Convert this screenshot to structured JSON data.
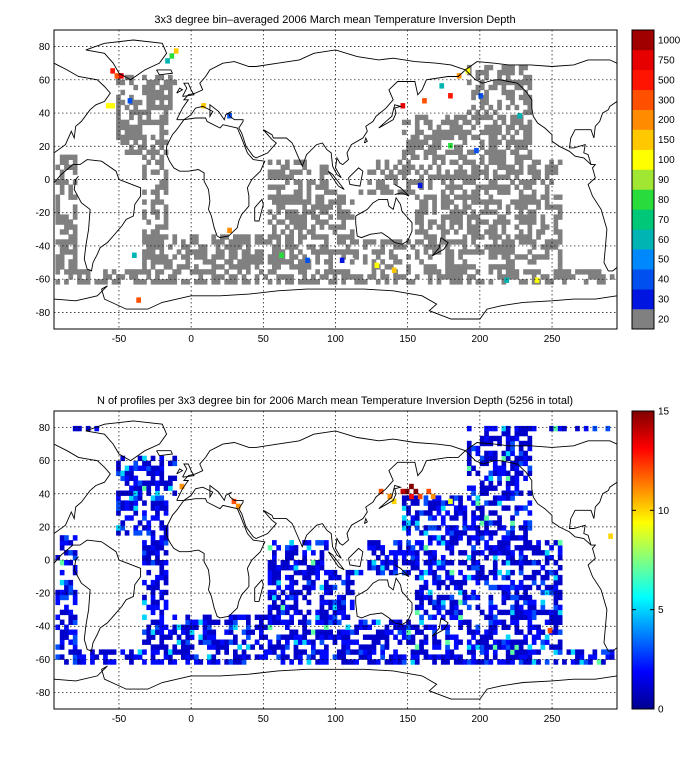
{
  "figure": {
    "panels": [
      {
        "title": "3x3 degree bin–averaged 2006 March mean Temperature Inversion Depth",
        "colorbar_labels": [
          "20",
          "30",
          "40",
          "50",
          "60",
          "70",
          "80",
          "90",
          "100",
          "150",
          "200",
          "300",
          "500",
          "750",
          "1000"
        ],
        "colorbar_colors": [
          "#808080",
          "#0016e0",
          "#0050f0",
          "#0088ff",
          "#00b4b4",
          "#00c878",
          "#28dc3c",
          "#a0e632",
          "#ffff00",
          "#ffc800",
          "#ff8c00",
          "#ff5000",
          "#ff1400",
          "#e60000",
          "#a00000"
        ]
      },
      {
        "title": "N of profiles per 3x3 degree bin for 2006 March mean Temperature Inversion Depth  (5256 in total)",
        "colorbar_ticks": [
          "0",
          "5",
          "10",
          "15"
        ],
        "colorbar_colors": [
          "#00008f",
          "#0000ff",
          "#0080ff",
          "#00ffff",
          "#80ff80",
          "#ffff00",
          "#ff8000",
          "#ff0000",
          "#800000"
        ]
      }
    ]
  },
  "chart_data": [
    {
      "type": "heatmap",
      "title": "3x3 degree bin–averaged 2006 March mean Temperature Inversion Depth",
      "xlabel": "",
      "ylabel": "",
      "xlim": [
        -95,
        295
      ],
      "ylim": [
        -90,
        90
      ],
      "xticks": [
        -50,
        0,
        50,
        100,
        150,
        200,
        250
      ],
      "yticks": [
        -80,
        -60,
        -40,
        -20,
        0,
        20,
        40,
        60,
        80
      ],
      "grid": true,
      "colorbar": {
        "type": "categorical",
        "labels": [
          "20",
          "30",
          "40",
          "50",
          "60",
          "70",
          "80",
          "90",
          "100",
          "150",
          "200",
          "300",
          "500",
          "750",
          "1000"
        ]
      },
      "notable_bins": [
        {
          "lon": -56,
          "lat": 64,
          "value": 500
        },
        {
          "lon": -53,
          "lat": 61,
          "value": 300
        },
        {
          "lon": -50,
          "lat": 61,
          "value": 750
        },
        {
          "lon": -59,
          "lat": 43,
          "value": 100
        },
        {
          "lon": -56,
          "lat": 43,
          "value": 100
        },
        {
          "lon": -44,
          "lat": 46,
          "value": 40
        },
        {
          "lon": -12,
          "lat": 76,
          "value": 150
        },
        {
          "lon": -15,
          "lat": 73,
          "value": 80
        },
        {
          "lon": -18,
          "lat": 70,
          "value": 60
        },
        {
          "lon": 7,
          "lat": 43,
          "value": 150
        },
        {
          "lon": 25,
          "lat": 37,
          "value": 40
        },
        {
          "lon": 145,
          "lat": 43,
          "value": 750
        },
        {
          "lon": 160,
          "lat": 46,
          "value": 300
        },
        {
          "lon": 172,
          "lat": 55,
          "value": 60
        },
        {
          "lon": 178,
          "lat": 49,
          "value": 500
        },
        {
          "lon": 184,
          "lat": 61,
          "value": 200
        },
        {
          "lon": 190,
          "lat": 64,
          "value": 100
        },
        {
          "lon": 199,
          "lat": 49,
          "value": 40
        },
        {
          "lon": 226,
          "lat": 37,
          "value": 60
        },
        {
          "lon": 178,
          "lat": 19,
          "value": 80
        },
        {
          "lon": 196,
          "lat": 16,
          "value": 40
        },
        {
          "lon": 157,
          "lat": -5,
          "value": 30
        },
        {
          "lon": -38,
          "lat": -74,
          "value": 300
        },
        {
          "lon": 25,
          "lat": -32,
          "value": 200
        },
        {
          "lon": -41,
          "lat": -47,
          "value": 60
        },
        {
          "lon": 61,
          "lat": -47,
          "value": 80
        },
        {
          "lon": 79,
          "lat": -50,
          "value": 40
        },
        {
          "lon": 103,
          "lat": -50,
          "value": 30
        },
        {
          "lon": 112,
          "lat": -47,
          "value": 20
        },
        {
          "lon": 127,
          "lat": -53,
          "value": 100
        },
        {
          "lon": 139,
          "lat": -56,
          "value": 150
        },
        {
          "lon": 217,
          "lat": -62,
          "value": 60
        },
        {
          "lon": 238,
          "lat": -62,
          "value": 100
        }
      ],
      "background_bin_value": 20
    },
    {
      "type": "heatmap",
      "title": "N of profiles per 3x3 degree bin for 2006 March mean Temperature Inversion Depth  (5256 in total)",
      "xlabel": "",
      "ylabel": "",
      "xlim": [
        -95,
        295
      ],
      "ylim": [
        -90,
        90
      ],
      "xticks": [
        -50,
        0,
        50,
        100,
        150,
        200,
        250
      ],
      "yticks": [
        -80,
        -60,
        -40,
        -20,
        0,
        20,
        40,
        60,
        80
      ],
      "grid": true,
      "colorbar": {
        "type": "continuous",
        "range": [
          0,
          15
        ],
        "ticks": [
          0,
          5,
          10,
          15
        ]
      },
      "total_profiles": 5256,
      "notable_bins": [
        {
          "lon": 130,
          "lat": 40,
          "count": 12
        },
        {
          "lon": 136,
          "lat": 37,
          "count": 11
        },
        {
          "lon": 145,
          "lat": 40,
          "count": 14
        },
        {
          "lon": 148,
          "lat": 40,
          "count": 15
        },
        {
          "lon": 151,
          "lat": 43,
          "count": 15
        },
        {
          "lon": 151,
          "lat": 37,
          "count": 13
        },
        {
          "lon": 154,
          "lat": 40,
          "count": 15
        },
        {
          "lon": 157,
          "lat": 37,
          "count": 12
        },
        {
          "lon": 163,
          "lat": 40,
          "count": 12
        },
        {
          "lon": 166,
          "lat": 37,
          "count": 11
        },
        {
          "lon": 139,
          "lat": 34,
          "count": 10
        },
        {
          "lon": 178,
          "lat": 34,
          "count": 9
        },
        {
          "lon": 28,
          "lat": 34,
          "count": 12
        },
        {
          "lon": 31,
          "lat": 31,
          "count": 11
        },
        {
          "lon": -8,
          "lat": 43,
          "count": 11
        },
        {
          "lon": 247,
          "lat": -44,
          "count": 12
        },
        {
          "lon": 289,
          "lat": 13,
          "count": 10
        }
      ]
    }
  ]
}
